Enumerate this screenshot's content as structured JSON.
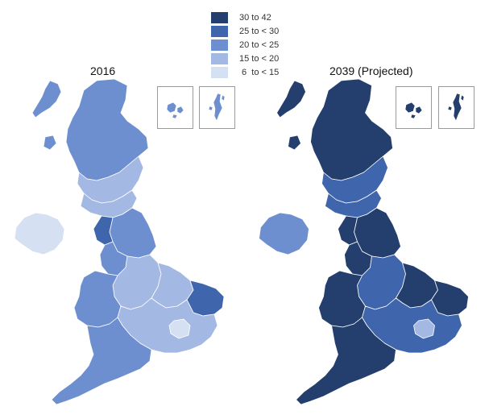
{
  "legend": {
    "bins": [
      {
        "label": "30 to 42",
        "color": "#243f6e"
      },
      {
        "label": "25 to < 30",
        "color": "#3f65ad"
      },
      {
        "label": "20 to < 25",
        "color": "#6d8fd0"
      },
      {
        "label": "15 to < 20",
        "color": "#a3b8e3"
      },
      {
        "label": " 6  to < 15",
        "color": "#d6e0f3"
      }
    ]
  },
  "maps": [
    {
      "title": "2016",
      "region_shades": {
        "scotland_north": "#6d8fd0",
        "scotland_islands": "#6d8fd0",
        "scotland_south": "#a3b8e3",
        "northern_ireland": "#d6e0f3",
        "north_england": "#6d8fd0",
        "midlands": "#a3b8e3",
        "wales": "#6d8fd0",
        "east": "#a3b8e3",
        "south_east": "#a3b8e3",
        "south_west": "#6d8fd0",
        "london": "#d6e0f3",
        "lakes": "#3f65ad",
        "norfolk": "#3f65ad"
      }
    },
    {
      "title": "2039 (Projected)",
      "region_shades": {
        "scotland_north": "#243f6e",
        "scotland_islands": "#243f6e",
        "scotland_south": "#3f65ad",
        "northern_ireland": "#6d8fd0",
        "north_england": "#243f6e",
        "midlands": "#3f65ad",
        "wales": "#243f6e",
        "east": "#243f6e",
        "south_east": "#3f65ad",
        "south_west": "#243f6e",
        "london": "#a3b8e3",
        "lakes": "#243f6e",
        "norfolk": "#243f6e"
      }
    }
  ]
}
